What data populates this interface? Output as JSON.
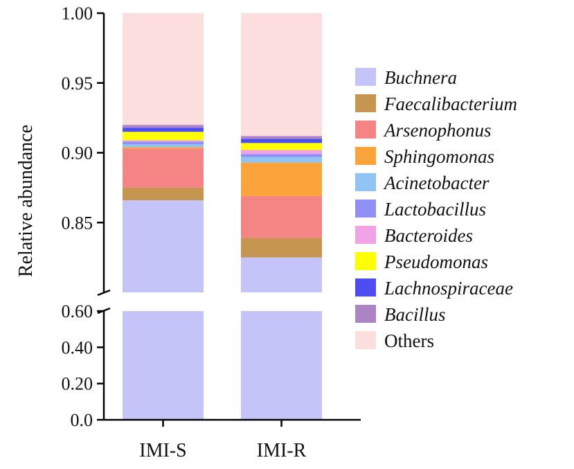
{
  "chart_data": {
    "type": "bar",
    "stacked": true,
    "categories": [
      "IMI-S",
      "IMI-R"
    ],
    "ylabel": "Relative abundance",
    "axis_break": true,
    "lower_segment": {
      "ylim": [
        0.0,
        0.6
      ],
      "ticks": [
        "0.0",
        "0.20",
        "0.40",
        "0.60"
      ]
    },
    "upper_segment": {
      "ylim": [
        0.8,
        1.0
      ],
      "ticks": [
        "0.85",
        "0.90",
        "0.95",
        "1.00"
      ]
    },
    "series": [
      {
        "name": "Buchnera",
        "color": "#c4c4f8",
        "values": [
          0.866,
          0.825
        ]
      },
      {
        "name": "Faecalibacterium",
        "color": "#c69550",
        "values": [
          0.009,
          0.014
        ]
      },
      {
        "name": "Arsenophonus",
        "color": "#f58585",
        "values": [
          0.028,
          0.03
        ]
      },
      {
        "name": "Sphingomonas",
        "color": "#fba43c",
        "values": [
          0.001,
          0.024
        ]
      },
      {
        "name": "Acinetobacter",
        "color": "#8fc4f5",
        "values": [
          0.002,
          0.004
        ]
      },
      {
        "name": "Lactobacillus",
        "color": "#8f8ff5",
        "values": [
          0.002,
          0.002
        ]
      },
      {
        "name": "Bacteroides",
        "color": "#f2a3e8",
        "values": [
          0.001,
          0.003
        ]
      },
      {
        "name": "Pseudomonas",
        "color": "#ffff00",
        "values": [
          0.006,
          0.005
        ]
      },
      {
        "name": "Lachnospiraceae",
        "color": "#4d4df2",
        "values": [
          0.003,
          0.003
        ]
      },
      {
        "name": "Bacillus",
        "color": "#ad85c4",
        "values": [
          0.002,
          0.002
        ]
      },
      {
        "name": "Others",
        "color": "#fddede",
        "values": [
          0.08,
          0.088
        ]
      }
    ],
    "legend_position": "right"
  }
}
